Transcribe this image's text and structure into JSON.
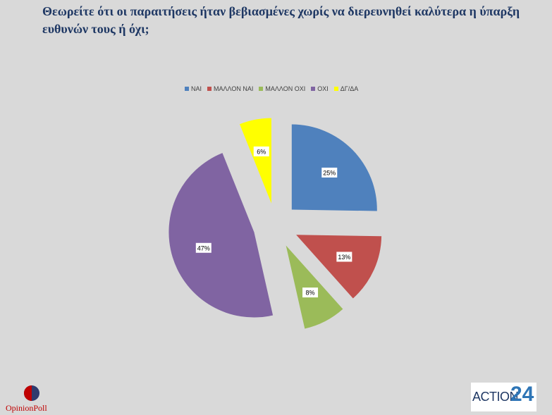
{
  "question": "Θεωρείτε ότι οι παραιτήσεις ήταν βεβιασμένες χωρίς να διερευνηθεί καλύτερα η ύπαρξη ευθυνών τους ή όχι;",
  "chart_data": {
    "type": "pie",
    "categories": [
      "ΝΑΙ",
      "ΜΑΛΛΟΝ ΝΑΙ",
      "ΜΑΛΛΟΝ ΟΧΙ",
      "ΟΧΙ",
      "ΔΓ/ΔΑ"
    ],
    "values": [
      25,
      13,
      8,
      47,
      6
    ],
    "labels": [
      "25%",
      "13%",
      "8%",
      "47%",
      "6%"
    ],
    "colors": [
      "#4f81bd",
      "#c0504d",
      "#9bbb59",
      "#8064a2",
      "#ffff00"
    ],
    "exploded": true,
    "legend_position": "top"
  },
  "branding": {
    "left_logo_text": "OpinionPoll",
    "right_logo_text": "ACTION",
    "right_logo_number": "24"
  }
}
